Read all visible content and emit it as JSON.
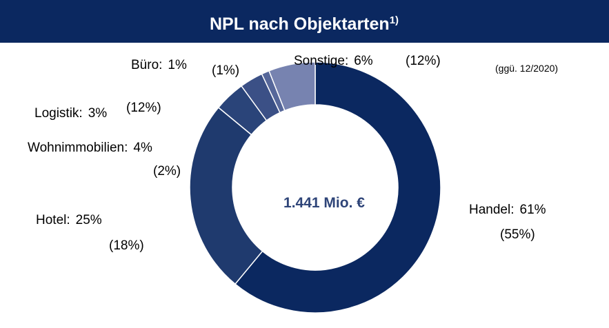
{
  "chart_data": {
    "type": "donut",
    "title": "NPL nach Objektarten",
    "title_footnote": "1)",
    "center_label": "1.441 Mio. €",
    "comparison_note": "(ggü. 12/2020)",
    "categories": [
      "Handel:",
      "Hotel:",
      "Wohnimmobilien:",
      "Logistik:",
      "Büro:",
      "Sonstige:"
    ],
    "values": [
      61,
      25,
      4,
      3,
      1,
      6
    ],
    "value_labels": [
      "61%",
      "25%",
      "4%",
      "3%",
      "1%",
      "6%"
    ],
    "comparison_values": [
      55,
      18,
      2,
      12,
      1,
      12
    ],
    "comparison_labels": [
      "(55%)",
      "(18%)",
      "(2%)",
      "(12%)",
      "(1%)",
      "(12%)"
    ],
    "colors": [
      "#0b2860",
      "#1f3a6e",
      "#2a4479",
      "#3b5086",
      "#56679a",
      "#7783b0"
    ]
  }
}
